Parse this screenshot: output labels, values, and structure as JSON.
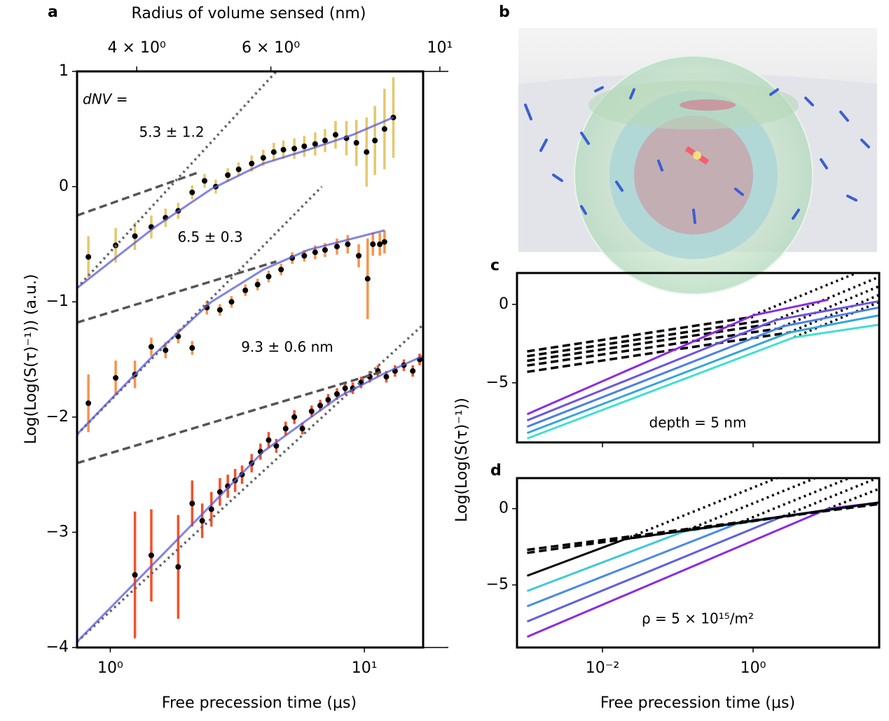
{
  "chart_data": [
    {
      "type": "errorbar-line",
      "label": "a",
      "xlabel": "Free precession time (μs)",
      "ylabel": "Log(Log(S(τ)⁻¹)) (a.u.)",
      "x2label": "Radius of volume sensed (nm)",
      "xscale": "log",
      "xlim": [
        0.74,
        21.4
      ],
      "ylim": [
        -4,
        1
      ],
      "xticks": [
        {
          "value": 1,
          "label": "10⁰"
        },
        {
          "value": 10,
          "label": "10¹"
        }
      ],
      "x2scale": "log",
      "x2lim": [
        3.34,
        10.26
      ],
      "x2ticks": [
        {
          "value": 4,
          "label": "4 × 10⁰"
        },
        {
          "value": 6,
          "label": "6 × 10⁰"
        },
        {
          "value": 10,
          "label": "10¹"
        }
      ],
      "yticks": [
        1,
        0,
        {
          "value": -1,
          "label": "−1"
        },
        {
          "value": -2,
          "label": "−2"
        },
        {
          "value": -3,
          "label": "−3"
        },
        {
          "value": -4,
          "label": "−4"
        }
      ],
      "annotations": [
        "dNV =",
        "5.3 ± 1.2",
        "6.5 ± 0.3",
        "9.3 ± 0.6 nm"
      ],
      "series": [
        {
          "style": "markers",
          "color": "#e5c76b",
          "x": [
            0.82,
            1.05,
            1.25,
            1.45,
            1.65,
            1.85,
            2.1,
            2.35,
            2.6,
            2.9,
            3.2,
            3.6,
            4.0,
            4.4,
            4.8,
            5.3,
            5.8,
            6.4,
            7.0,
            7.7,
            8.5,
            9.3,
            10.2,
            11.0,
            12.0,
            13.0
          ],
          "values": [
            -0.61,
            -0.51,
            -0.43,
            -0.35,
            -0.27,
            -0.21,
            -0.05,
            0.05,
            0.0,
            0.1,
            0.15,
            0.2,
            0.25,
            0.3,
            0.32,
            0.33,
            0.35,
            0.37,
            0.4,
            0.45,
            0.42,
            0.38,
            0.3,
            0.4,
            0.5,
            0.6
          ],
          "errors": [
            0.18,
            0.15,
            0.12,
            0.1,
            0.08,
            0.07,
            0.06,
            0.06,
            0.06,
            0.06,
            0.06,
            0.07,
            0.07,
            0.08,
            0.08,
            0.09,
            0.09,
            0.1,
            0.1,
            0.12,
            0.15,
            0.2,
            0.3,
            0.3,
            0.35,
            0.35
          ]
        },
        {
          "style": "markers",
          "color": "#f7934c",
          "x": [
            0.82,
            1.05,
            1.25,
            1.45,
            1.65,
            1.85,
            2.1,
            2.4,
            2.7,
            3.0,
            3.4,
            3.8,
            4.2,
            4.7,
            5.2,
            5.8,
            6.4,
            7.0,
            7.8,
            8.6,
            9.5,
            10.3,
            10.8,
            11.5,
            12.0
          ],
          "values": [
            -1.88,
            -1.66,
            -1.63,
            -1.39,
            -1.42,
            -1.3,
            -1.4,
            -1.05,
            -1.07,
            -1.0,
            -0.9,
            -0.85,
            -0.78,
            -0.72,
            -0.62,
            -0.6,
            -0.57,
            -0.55,
            -0.52,
            -0.5,
            -0.6,
            -0.8,
            -0.5,
            -0.5,
            -0.48
          ],
          "errors": [
            0.25,
            0.15,
            0.12,
            0.08,
            0.07,
            0.06,
            0.06,
            0.06,
            0.05,
            0.05,
            0.05,
            0.05,
            0.05,
            0.05,
            0.05,
            0.05,
            0.06,
            0.06,
            0.07,
            0.08,
            0.1,
            0.35,
            0.1,
            0.1,
            0.1
          ]
        },
        {
          "style": "markers",
          "color": "#f4502a",
          "x": [
            1.25,
            1.45,
            1.85,
            2.1,
            2.3,
            2.5,
            2.7,
            2.9,
            3.1,
            3.3,
            3.6,
            3.9,
            4.2,
            4.5,
            4.9,
            5.3,
            5.7,
            6.2,
            6.7,
            7.2,
            7.8,
            8.4,
            9.0,
            9.7,
            10.5,
            11.3,
            12.2,
            13.2,
            14.3,
            15.5,
            16.5
          ],
          "values": [
            -3.37,
            -3.2,
            -3.3,
            -2.75,
            -2.9,
            -2.8,
            -2.65,
            -2.6,
            -2.55,
            -2.5,
            -2.4,
            -2.3,
            -2.2,
            -2.25,
            -2.1,
            -2.0,
            -2.1,
            -1.95,
            -1.9,
            -1.85,
            -1.8,
            -1.75,
            -1.75,
            -1.7,
            -1.65,
            -1.6,
            -1.65,
            -1.6,
            -1.55,
            -1.6,
            -1.5
          ],
          "errors": [
            0.55,
            0.4,
            0.45,
            0.2,
            0.15,
            0.15,
            0.12,
            0.1,
            0.1,
            0.08,
            0.08,
            0.07,
            0.07,
            0.06,
            0.06,
            0.06,
            0.05,
            0.05,
            0.05,
            0.05,
            0.05,
            0.05,
            0.05,
            0.05,
            0.05,
            0.05,
            0.05,
            0.05,
            0.05,
            0.05,
            0.05
          ]
        },
        {
          "style": "dashed",
          "color": "#555555",
          "x": [
            0.74,
            2.2
          ],
          "values": [
            -0.25,
            0.12
          ]
        },
        {
          "style": "dotted",
          "color": "#666666",
          "x": [
            0.74,
            4.5
          ],
          "values": [
            -0.88,
            1.0
          ]
        },
        {
          "style": "dashed",
          "color": "#555555",
          "x": [
            0.74,
            4.5
          ],
          "values": [
            -1.18,
            -0.65
          ]
        },
        {
          "style": "dotted",
          "color": "#666666",
          "x": [
            0.74,
            6.8
          ],
          "values": [
            -2.15,
            0.0
          ]
        },
        {
          "style": "dashed",
          "color": "#555555",
          "x": [
            0.74,
            12
          ],
          "values": [
            -2.4,
            -1.6
          ]
        },
        {
          "style": "dotted",
          "color": "#666666",
          "x": [
            0.74,
            17
          ],
          "values": [
            -3.95,
            -1.2
          ]
        },
        {
          "style": "fit",
          "color": "#5a5ad8",
          "x": [
            0.74,
            1.5,
            2.5,
            4,
            6,
            9,
            13
          ],
          "values": [
            -0.88,
            -0.35,
            -0.02,
            0.2,
            0.32,
            0.45,
            0.6
          ]
        },
        {
          "style": "fit",
          "color": "#5a5ad8",
          "x": [
            0.74,
            1.5,
            2.5,
            4,
            6,
            9,
            12
          ],
          "values": [
            -2.15,
            -1.45,
            -1.0,
            -0.72,
            -0.55,
            -0.45,
            -0.38
          ]
        },
        {
          "style": "fit",
          "color": "#5a5ad8",
          "x": [
            0.74,
            2,
            4,
            8,
            12,
            17
          ],
          "values": [
            -3.95,
            -2.98,
            -2.3,
            -1.82,
            -1.62,
            -1.47
          ]
        }
      ]
    },
    {
      "type": "line",
      "label": "c",
      "ylabel": "Log(Log(S(τ)⁻¹))",
      "xscale": "log",
      "xlim": [
        0.000733,
        47.2
      ],
      "ylim": [
        -8.8,
        2.0
      ],
      "xticks": [
        0.01,
        1
      ],
      "xtick_labels": false,
      "yticks": [
        0,
        {
          "value": -5,
          "label": "−5"
        }
      ],
      "annotations": [
        "depth = 5 nm"
      ],
      "series": [
        {
          "style": "dashed",
          "color": "#000000",
          "x": [
            0.001,
            1
          ],
          "values": [
            -3.0,
            -0.8
          ]
        },
        {
          "style": "dashed",
          "color": "#000000",
          "x": [
            0.001,
            1.5
          ],
          "values": [
            -3.3,
            -1.0
          ]
        },
        {
          "style": "dashed",
          "color": "#000000",
          "x": [
            0.001,
            2
          ],
          "values": [
            -3.6,
            -1.2
          ]
        },
        {
          "style": "dashed",
          "color": "#000000",
          "x": [
            0.001,
            2.5
          ],
          "values": [
            -3.9,
            -1.5
          ]
        },
        {
          "style": "dashed",
          "color": "#000000",
          "x": [
            0.001,
            3
          ],
          "values": [
            -4.3,
            -1.8
          ]
        },
        {
          "style": "dotted",
          "color": "#000000",
          "x": [
            1,
            47
          ],
          "values": [
            -0.7,
            2.6
          ]
        },
        {
          "style": "dotted",
          "color": "#000000",
          "x": [
            2,
            47
          ],
          "values": [
            -1.0,
            1.75
          ]
        },
        {
          "style": "dotted",
          "color": "#000000",
          "x": [
            2.5,
            47
          ],
          "values": [
            -1.4,
            1.15
          ]
        },
        {
          "style": "dotted",
          "color": "#000000",
          "x": [
            3,
            47
          ],
          "values": [
            -1.8,
            0.6
          ]
        },
        {
          "style": "dotted",
          "color": "#000000",
          "x": [
            3.5,
            47
          ],
          "values": [
            -2.1,
            0.15
          ]
        },
        {
          "style": "solid",
          "color": "#8b2be2",
          "x": [
            0.001,
            1,
            10
          ],
          "values": [
            -7.0,
            -0.7,
            0.3
          ]
        },
        {
          "style": "solid",
          "color": "#6b55e0",
          "x": [
            0.001,
            2,
            47
          ],
          "values": [
            -7.4,
            -1.0,
            0.2
          ]
        },
        {
          "style": "solid",
          "color": "#4a80e8",
          "x": [
            0.001,
            2.5,
            47
          ],
          "values": [
            -7.8,
            -1.4,
            -0.2
          ]
        },
        {
          "style": "solid",
          "color": "#33a5dd",
          "x": [
            0.001,
            3,
            47
          ],
          "values": [
            -8.2,
            -1.8,
            -0.7
          ]
        },
        {
          "style": "solid",
          "color": "#40e0d0",
          "x": [
            0.001,
            3.5,
            47
          ],
          "values": [
            -8.55,
            -2.1,
            -1.3
          ]
        }
      ]
    },
    {
      "type": "line",
      "label": "d",
      "xlabel": "Free precession time (μs)",
      "xscale": "log",
      "xlim": [
        0.000733,
        47.2
      ],
      "ylim": [
        -9.1,
        2.0
      ],
      "xticks": [
        {
          "value": 0.01,
          "label": "10⁻²"
        },
        {
          "value": 1,
          "label": "10⁰"
        }
      ],
      "yticks": [
        0,
        {
          "value": -5,
          "label": "−5"
        }
      ],
      "annotations": [
        "ρ = 5 × 10¹⁵/m²"
      ],
      "series": [
        {
          "style": "dotted",
          "color": "#000000",
          "x": [
            0.02,
            47
          ],
          "values": [
            -2.0,
            4.7
          ]
        },
        {
          "style": "dotted",
          "color": "#000000",
          "x": [
            0.12,
            47
          ],
          "values": [
            -1.5,
            3.7
          ]
        },
        {
          "style": "dotted",
          "color": "#000000",
          "x": [
            0.6,
            47
          ],
          "values": [
            -1.0,
            2.8
          ]
        },
        {
          "style": "dotted",
          "color": "#000000",
          "x": [
            2.5,
            47
          ],
          "values": [
            -0.5,
            2.05
          ]
        },
        {
          "style": "dotted",
          "color": "#000000",
          "x": [
            10,
            47
          ],
          "values": [
            0.0,
            1.3
          ]
        },
        {
          "style": "solid",
          "color": "#8b2be2",
          "x": [
            0.001,
            10,
            47
          ],
          "values": [
            -8.4,
            0.0,
            0.4
          ]
        },
        {
          "style": "solid",
          "color": "#5f60e0",
          "x": [
            0.001,
            2.5,
            47
          ],
          "values": [
            -7.4,
            -0.5,
            0.4
          ]
        },
        {
          "style": "solid",
          "color": "#4a8ae8",
          "x": [
            0.001,
            0.6,
            47
          ],
          "values": [
            -6.4,
            -1.0,
            0.4
          ]
        },
        {
          "style": "solid",
          "color": "#40c8d8",
          "x": [
            0.001,
            0.12,
            47
          ],
          "values": [
            -5.4,
            -1.5,
            0.4
          ]
        },
        {
          "style": "solid",
          "color": "#000000",
          "x": [
            0.001,
            0.02,
            47
          ],
          "values": [
            -4.4,
            -2.0,
            0.4
          ]
        },
        {
          "style": "dashed",
          "color": "#000000",
          "x": [
            0.001,
            47
          ],
          "values": [
            -2.7,
            0.3
          ]
        },
        {
          "style": "dashed",
          "color": "#000000",
          "x": [
            0.001,
            47
          ],
          "values": [
            -2.9,
            0.35
          ]
        }
      ]
    }
  ],
  "image_panel": {
    "label": "b"
  }
}
